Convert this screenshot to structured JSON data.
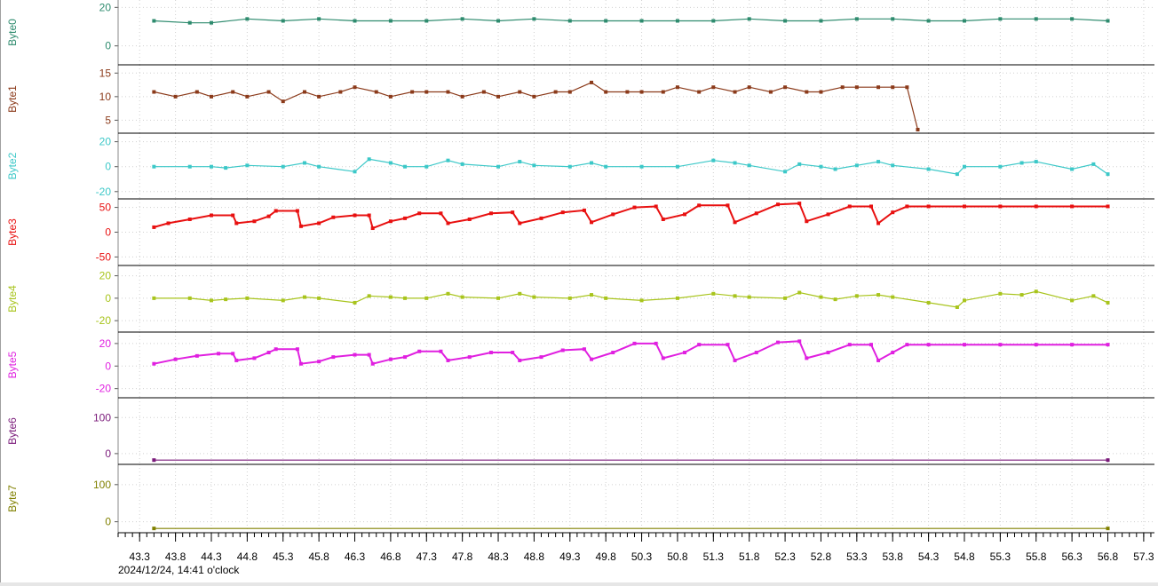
{
  "chart_data": {
    "type": "line",
    "x_ticks": [
      "43.3",
      "43.8",
      "44.3",
      "44.8",
      "45.3",
      "45.8",
      "46.3",
      "46.8",
      "47.3",
      "47.8",
      "48.3",
      "48.8",
      "49.3",
      "49.8",
      "50.3",
      "50.8",
      "51.3",
      "51.8",
      "52.3",
      "52.8",
      "53.3",
      "53.8",
      "54.3",
      "54.8",
      "55.3",
      "55.8",
      "56.3",
      "56.8",
      "57.3"
    ],
    "x_range": [
      43.0,
      57.45
    ],
    "timestamp_label": "2024/12/24, 14:41 o'clock",
    "grid": true,
    "panels": [
      {
        "name": "Byte0",
        "color": "#2e8b6e",
        "ylim": [
          -8,
          22
        ],
        "ticks": [
          "20",
          "0"
        ],
        "tick_values": [
          20,
          0
        ],
        "x": [
          43.5,
          44.0,
          44.3,
          44.8,
          45.3,
          45.8,
          46.3,
          46.8,
          47.3,
          47.8,
          48.3,
          48.8,
          49.3,
          49.8,
          50.3,
          50.8,
          51.3,
          51.8,
          52.3,
          52.8,
          53.3,
          53.8,
          54.3,
          54.8,
          55.3,
          55.8,
          56.3,
          56.8
        ],
        "y": [
          13,
          12,
          12,
          14,
          13,
          14,
          13,
          13,
          13,
          14,
          13,
          14,
          13,
          13,
          13,
          13,
          13,
          14,
          13,
          13,
          14,
          14,
          13,
          13,
          14,
          14,
          14,
          13
        ]
      },
      {
        "name": "Byte1",
        "color": "#8b3a1a",
        "ylim": [
          3,
          16
        ],
        "ticks": [
          "15",
          "10",
          "5"
        ],
        "tick_values": [
          15,
          10,
          5
        ],
        "x": [
          43.5,
          43.8,
          44.1,
          44.3,
          44.6,
          44.8,
          45.1,
          45.3,
          45.6,
          45.8,
          46.1,
          46.3,
          46.6,
          46.8,
          47.1,
          47.3,
          47.6,
          47.8,
          48.1,
          48.3,
          48.6,
          48.8,
          49.1,
          49.3,
          49.6,
          49.8,
          50.1,
          50.3,
          50.6,
          50.8,
          51.1,
          51.3,
          51.6,
          51.8,
          52.1,
          52.3,
          52.6,
          52.8,
          53.1,
          53.3,
          53.6,
          53.8,
          54.0,
          54.15
        ],
        "y": [
          11,
          10,
          11,
          10,
          11,
          10,
          11,
          9,
          11,
          10,
          11,
          12,
          11,
          10,
          11,
          11,
          11,
          10,
          11,
          10,
          11,
          10,
          11,
          11,
          13,
          11,
          11,
          11,
          11,
          12,
          11,
          12,
          11,
          12,
          11,
          12,
          11,
          11,
          12,
          12,
          12,
          12,
          12,
          3
        ]
      },
      {
        "name": "Byte2",
        "color": "#3cc8c8",
        "ylim": [
          -23,
          24
        ],
        "ticks": [
          "20",
          "0",
          "-20"
        ],
        "tick_values": [
          20,
          0,
          -20
        ],
        "x": [
          43.5,
          44.0,
          44.3,
          44.5,
          44.8,
          45.3,
          45.6,
          45.8,
          46.3,
          46.5,
          46.8,
          47.0,
          47.3,
          47.6,
          47.8,
          48.3,
          48.6,
          48.8,
          49.3,
          49.6,
          49.8,
          50.3,
          50.8,
          51.3,
          51.6,
          51.8,
          52.3,
          52.5,
          52.8,
          53.0,
          53.3,
          53.6,
          53.8,
          54.3,
          54.7,
          54.8,
          55.3,
          55.6,
          55.8,
          56.3,
          56.6,
          56.8
        ],
        "y": [
          0,
          0,
          0,
          -1,
          1,
          0,
          3,
          0,
          -4,
          6,
          3,
          0,
          0,
          5,
          2,
          0,
          4,
          1,
          0,
          3,
          0,
          0,
          0,
          5,
          3,
          1,
          -4,
          2,
          0,
          -2,
          1,
          4,
          1,
          -2,
          -6,
          0,
          0,
          3,
          4,
          -2,
          2,
          -6
        ]
      },
      {
        "name": "Byte3",
        "color": "#e81010",
        "ylim": [
          -60,
          60
        ],
        "ticks": [
          "50",
          "0",
          "-50"
        ],
        "tick_values": [
          50,
          0,
          -50
        ],
        "x": [
          43.5,
          43.7,
          44.0,
          44.3,
          44.6,
          44.65,
          44.9,
          45.1,
          45.2,
          45.5,
          45.55,
          45.8,
          46.0,
          46.3,
          46.5,
          46.55,
          46.8,
          47.0,
          47.2,
          47.5,
          47.6,
          47.9,
          48.2,
          48.5,
          48.6,
          48.9,
          49.2,
          49.5,
          49.6,
          49.9,
          50.2,
          50.5,
          50.6,
          50.9,
          51.1,
          51.5,
          51.6,
          51.9,
          52.2,
          52.5,
          52.6,
          52.9,
          53.2,
          53.5,
          53.6,
          53.8,
          54.0,
          54.3,
          54.8,
          55.3,
          55.8,
          56.3,
          56.8
        ],
        "y": [
          10,
          18,
          26,
          34,
          34,
          18,
          22,
          32,
          43,
          43,
          12,
          18,
          30,
          34,
          34,
          8,
          22,
          28,
          38,
          38,
          18,
          26,
          38,
          40,
          18,
          28,
          40,
          44,
          20,
          36,
          50,
          52,
          26,
          36,
          54,
          54,
          20,
          38,
          56,
          58,
          22,
          36,
          52,
          52,
          18,
          40,
          52,
          52,
          52,
          52,
          52,
          52,
          52
        ]
      },
      {
        "name": "Byte4",
        "color": "#a8c41c",
        "ylim": [
          -27,
          26
        ],
        "ticks": [
          "20",
          "0",
          "-20"
        ],
        "tick_values": [
          20,
          0,
          -20
        ],
        "x": [
          43.5,
          44.0,
          44.3,
          44.5,
          44.8,
          45.3,
          45.6,
          45.8,
          46.3,
          46.5,
          46.8,
          47.0,
          47.3,
          47.6,
          47.8,
          48.3,
          48.6,
          48.8,
          49.3,
          49.6,
          49.8,
          50.3,
          50.8,
          51.3,
          51.6,
          51.8,
          52.3,
          52.5,
          52.8,
          53.0,
          53.3,
          53.6,
          53.8,
          54.3,
          54.7,
          54.8,
          55.3,
          55.6,
          55.8,
          56.3,
          56.6,
          56.8
        ],
        "y": [
          0,
          0,
          -2,
          -1,
          0,
          -2,
          1,
          0,
          -4,
          2,
          1,
          0,
          0,
          4,
          1,
          0,
          4,
          1,
          0,
          3,
          0,
          -2,
          0,
          4,
          2,
          1,
          0,
          5,
          1,
          -1,
          2,
          3,
          1,
          -4,
          -8,
          -2,
          4,
          3,
          6,
          -2,
          2,
          -4
        ]
      },
      {
        "name": "Byte5",
        "color": "#e020e0",
        "ylim": [
          -25,
          27
        ],
        "ticks": [
          "20",
          "0",
          "-20"
        ],
        "tick_values": [
          20,
          0,
          -20
        ],
        "x": [
          43.5,
          43.8,
          44.1,
          44.4,
          44.6,
          44.65,
          44.9,
          45.1,
          45.2,
          45.5,
          45.55,
          45.8,
          46.0,
          46.3,
          46.5,
          46.55,
          46.8,
          47.0,
          47.2,
          47.5,
          47.6,
          47.9,
          48.2,
          48.5,
          48.6,
          48.9,
          49.2,
          49.5,
          49.6,
          49.9,
          50.2,
          50.5,
          50.6,
          50.9,
          51.1,
          51.5,
          51.6,
          51.9,
          52.2,
          52.5,
          52.6,
          52.9,
          53.2,
          53.5,
          53.6,
          53.8,
          54.0,
          54.3,
          54.8,
          55.3,
          55.8,
          56.3,
          56.8
        ],
        "y": [
          2,
          6,
          9,
          11,
          11,
          5,
          7,
          12,
          15,
          15,
          2,
          4,
          8,
          10,
          10,
          2,
          6,
          8,
          13,
          13,
          5,
          8,
          12,
          12,
          5,
          8,
          14,
          15,
          6,
          12,
          20,
          20,
          7,
          12,
          19,
          19,
          5,
          12,
          21,
          22,
          7,
          12,
          19,
          19,
          5,
          12,
          19,
          19,
          19,
          19,
          19,
          19,
          19
        ]
      },
      {
        "name": "Byte6",
        "color": "#7a1a7a",
        "ylim": [
          -20,
          145
        ],
        "ticks": [
          "100",
          "0"
        ],
        "tick_values": [
          100,
          0
        ],
        "x": [
          43.5,
          56.8
        ],
        "y": [
          -18,
          -18
        ]
      },
      {
        "name": "Byte7",
        "color": "#808000",
        "ylim": [
          -20,
          145
        ],
        "ticks": [
          "100",
          "0"
        ],
        "tick_values": [
          100,
          0
        ],
        "x": [
          43.5,
          56.8
        ],
        "y": [
          -18,
          -18
        ]
      }
    ]
  }
}
